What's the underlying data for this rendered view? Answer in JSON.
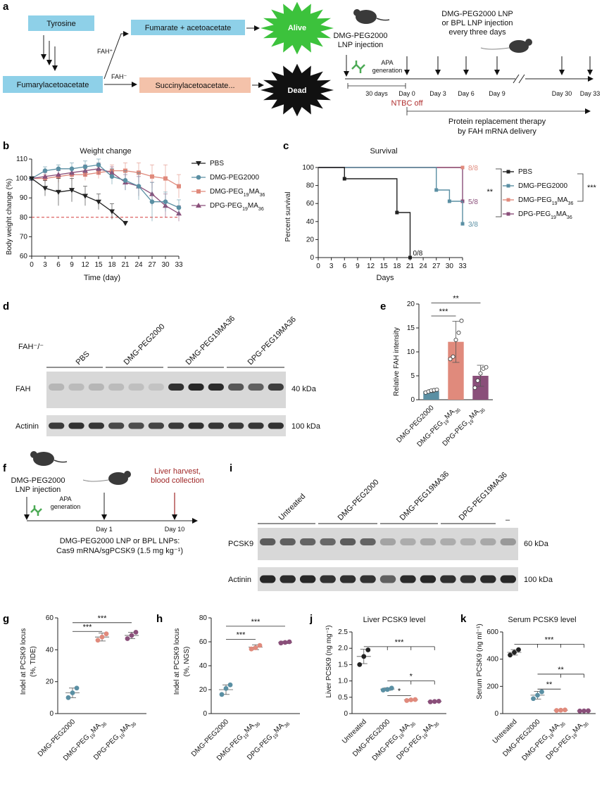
{
  "panel_labels": [
    "a",
    "b",
    "c",
    "d",
    "e",
    "f",
    "g",
    "h",
    "i",
    "j",
    "k"
  ],
  "colors": {
    "pbs": "#222222",
    "dmg_peg2000": "#5a8fa3",
    "dmg_pegma": "#e08a7c",
    "dpg_pegma": "#8a4f7a",
    "box_blue": "#8ed0e8",
    "box_salmon": "#f4c2aa",
    "alive": "#3cc23c",
    "dead": "#111111",
    "ntbc": "#b03030",
    "liver": "#a02828",
    "threshold": "#d63c3c"
  },
  "panel_a": {
    "tyrosine": "Tyrosine",
    "fumarylacetoacetate": "Fumarylacetoacetate",
    "fumarate": "Fumarate + acetoacetate",
    "succinyl": "Succinylacetoacetate...",
    "fah_plus": "FAH⁺",
    "fah_minus": "FAH⁻",
    "alive": "Alive",
    "dead": "Dead",
    "lnp_injection": [
      "DMG-PEG2000",
      "LNP injection"
    ],
    "apa": [
      "APA",
      "generation"
    ],
    "thirty_days": "30 days",
    "ntbc_off": "NTBC off",
    "repeat_injection": [
      "DMG-PEG2000 LNP",
      "or BPL LNP injection",
      "every three days"
    ],
    "days": [
      "Day 0",
      "Day 3",
      "Day 6",
      "Day 9",
      "Day 30",
      "Day 33"
    ],
    "therapy": [
      "Protein replacement therapy",
      "by FAH mRNA delivery"
    ]
  },
  "panel_d": {
    "genotype": "FAH⁻/⁻",
    "groups": [
      "PBS",
      "DMG-PEG2000",
      "DMG-PEG19MA36",
      "DPG-PEG19MA36"
    ],
    "rows": [
      "FAH",
      "Actinin"
    ],
    "sizes": [
      "40 kDa",
      "100 kDa"
    ]
  },
  "panel_f": {
    "lnp_injection": [
      "DMG-PEG2000",
      "LNP injection"
    ],
    "apa": [
      "APA",
      "generation"
    ],
    "harvest": [
      "Liver harvest,",
      "blood collection"
    ],
    "day1": "Day 1",
    "day10": "Day 10",
    "caption": [
      "DMG-PEG2000 LNP or BPL LNPs:",
      "Cas9 mRNA/sgPCSK9 (1.5 mg kg⁻¹)"
    ]
  },
  "panel_i": {
    "groups": [
      "Untreated",
      "DMG-PEG2000",
      "DMG-PEG19MA36",
      "DPG-PEG19MA36",
      "–"
    ],
    "rows": [
      "PCSK9",
      "Actinin"
    ],
    "sizes": [
      "60 kDa",
      "100 kDa"
    ]
  },
  "chart_data": [
    {
      "id": "b",
      "type": "line",
      "title": "Weight change",
      "xlabel": "Time (day)",
      "ylabel": "Body weight change (%)",
      "xlim": [
        0,
        33
      ],
      "ylim": [
        60,
        110
      ],
      "x_ticks": [
        0,
        3,
        6,
        9,
        12,
        15,
        18,
        21,
        24,
        27,
        30,
        33
      ],
      "y_ticks": [
        60,
        70,
        80,
        90,
        100,
        110
      ],
      "threshold": 80,
      "legend": [
        "PBS",
        "DMG-PEG2000",
        "DMG-PEG19MA36",
        "DPG-PEG19MA36"
      ],
      "series": [
        {
          "name": "PBS",
          "x": [
            0,
            3,
            6,
            9,
            12,
            15,
            18,
            21
          ],
          "values": [
            100,
            95,
            93,
            94,
            91,
            88,
            83,
            77
          ],
          "err": [
            0,
            4,
            7,
            6,
            5,
            4,
            4,
            1
          ]
        },
        {
          "name": "DMG-PEG2000",
          "x": [
            0,
            3,
            6,
            9,
            12,
            15,
            18,
            21,
            24,
            27,
            30,
            33
          ],
          "values": [
            100,
            104,
            105,
            105,
            106,
            107,
            101,
            99,
            96,
            88,
            88,
            85
          ],
          "err": [
            0,
            2,
            2,
            3,
            3,
            3,
            4,
            5,
            7,
            10,
            5,
            4
          ]
        },
        {
          "name": "DMG-PEG19MA36",
          "x": [
            0,
            3,
            6,
            9,
            12,
            15,
            18,
            21,
            24,
            27,
            30,
            33
          ],
          "values": [
            100,
            100,
            101,
            102,
            102,
            103,
            104,
            104,
            103,
            101,
            100,
            96
          ],
          "err": [
            0,
            2,
            3,
            3,
            3,
            3,
            3,
            4,
            5,
            6,
            7,
            6
          ]
        },
        {
          "name": "DPG-PEG19MA36",
          "x": [
            0,
            3,
            6,
            9,
            12,
            15,
            18,
            21,
            24,
            27,
            30,
            33
          ],
          "values": [
            100,
            101,
            102,
            103,
            104,
            105,
            103,
            98,
            96,
            92,
            86,
            82
          ],
          "err": [
            0,
            2,
            2,
            2,
            3,
            3,
            3,
            4,
            5,
            6,
            6,
            4
          ]
        }
      ]
    },
    {
      "id": "c",
      "type": "line",
      "title": "Survival",
      "xlabel": "Days",
      "ylabel": "Percent survival",
      "xlim": [
        0,
        33
      ],
      "ylim": [
        0,
        100
      ],
      "x_ticks": [
        0,
        3,
        6,
        9,
        12,
        15,
        18,
        21,
        24,
        27,
        30,
        33
      ],
      "y_ticks": [
        0,
        20,
        40,
        60,
        80,
        100
      ],
      "legend": [
        "PBS",
        "DMG-PEG2000",
        "DMG-PEG19MA36",
        "DPG-PEG19MA36"
      ],
      "annotations": [
        "8/8",
        "5/8",
        "3/8",
        "0/8"
      ],
      "significance": [
        "**",
        "***"
      ],
      "series": [
        {
          "name": "PBS",
          "x": [
            0,
            6,
            6,
            18,
            18,
            21,
            21
          ],
          "values": [
            100,
            100,
            87.5,
            87.5,
            50,
            50,
            0
          ]
        },
        {
          "name": "DMG-PEG2000",
          "x": [
            0,
            27,
            27,
            30,
            30,
            33,
            33
          ],
          "values": [
            100,
            100,
            75,
            75,
            62.5,
            62.5,
            37.5
          ]
        },
        {
          "name": "DMG-PEG19MA36",
          "x": [
            0,
            33
          ],
          "values": [
            100,
            100
          ]
        },
        {
          "name": "DPG-PEG19MA36",
          "x": [
            0,
            27,
            27,
            33,
            33
          ],
          "values": [
            100,
            100,
            100,
            100,
            62.5
          ]
        }
      ]
    },
    {
      "id": "e",
      "type": "bar",
      "ylabel": "Relative FAH intensity",
      "ylim": [
        0,
        20
      ],
      "y_ticks": [
        0,
        5,
        10,
        15,
        20
      ],
      "categories": [
        "DMG-PEG2000",
        "DMG-PEG19MA36",
        "DPG-PEG19MA36"
      ],
      "values": [
        1.8,
        12.1,
        5.0
      ],
      "err": [
        0.3,
        4.3,
        2.2
      ],
      "points": [
        [
          1.5,
          1.7,
          1.9,
          2.0,
          2.1
        ],
        [
          8.5,
          9.0,
          12.5,
          14.0,
          16.5
        ],
        [
          2.5,
          4.0,
          5.5,
          6.5,
          6.8
        ]
      ],
      "significance": [
        "***",
        "**"
      ]
    },
    {
      "id": "g",
      "type": "scatter",
      "ylabel": [
        "Indel at PCSK9 locus",
        "(%, TIDE)"
      ],
      "ylim": [
        0,
        60
      ],
      "y_ticks": [
        0,
        20,
        40,
        60
      ],
      "categories": [
        "DMG-PEG2000",
        "DMG-PEG19MA36",
        "DPG-PEG19MA36"
      ],
      "values": [
        13,
        48,
        49
      ],
      "err": [
        3,
        2.5,
        2
      ],
      "points": [
        [
          10,
          13,
          16
        ],
        [
          46,
          48,
          50
        ],
        [
          47,
          49,
          51
        ]
      ],
      "significance": [
        "***",
        "***"
      ]
    },
    {
      "id": "h",
      "type": "scatter",
      "ylabel": [
        "Indel at PCSK9 locus",
        "(%, NGS)"
      ],
      "ylim": [
        0,
        80
      ],
      "y_ticks": [
        0,
        20,
        40,
        60,
        80
      ],
      "categories": [
        "DMG-PEG2000",
        "DMG-PEG19MA36",
        "DPG-PEG19MA36"
      ],
      "values": [
        20,
        55.5,
        59.5
      ],
      "err": [
        4,
        2,
        1
      ],
      "points": [
        [
          16,
          21,
          24
        ],
        [
          54,
          55,
          57
        ],
        [
          59,
          59.5,
          60
        ]
      ],
      "significance": [
        "***",
        "***"
      ]
    },
    {
      "id": "j",
      "type": "scatter",
      "title": "Liver PCSK9 level",
      "ylabel": "Liver PCSK9 (ng mg⁻¹)",
      "ylim": [
        0,
        2.5
      ],
      "y_ticks": [
        0,
        0.5,
        1.0,
        1.5,
        2.0,
        2.5
      ],
      "categories": [
        "Untreated",
        "DMG-PEG2000",
        "DMG-PEG19MA36",
        "DPG-PEG19MA36"
      ],
      "values": [
        1.75,
        0.75,
        0.42,
        0.37
      ],
      "err": [
        0.22,
        0.04,
        0.02,
        0.01
      ],
      "points": [
        [
          1.5,
          1.75,
          1.95
        ],
        [
          0.72,
          0.74,
          0.78
        ],
        [
          0.4,
          0.42,
          0.43
        ],
        [
          0.36,
          0.37,
          0.38
        ]
      ],
      "significance": [
        "***",
        "*",
        "*"
      ]
    },
    {
      "id": "k",
      "type": "scatter",
      "title": "Serum PCSK9 level",
      "ylabel": "Serum PCSK9 (ng ml⁻¹)",
      "ylim": [
        0,
        600
      ],
      "y_ticks": [
        0,
        200,
        400,
        600
      ],
      "categories": [
        "Untreated",
        "DMG-PEG2000",
        "DMG-PEG19MA36",
        "DPG-PEG19MA36"
      ],
      "values": [
        450,
        135,
        25,
        20
      ],
      "err": [
        20,
        28,
        2,
        2
      ],
      "points": [
        [
          430,
          450,
          470
        ],
        [
          110,
          135,
          160
        ],
        [
          23,
          25,
          27
        ],
        [
          19,
          20,
          21
        ]
      ],
      "significance": [
        "***",
        "**",
        "**"
      ]
    }
  ]
}
